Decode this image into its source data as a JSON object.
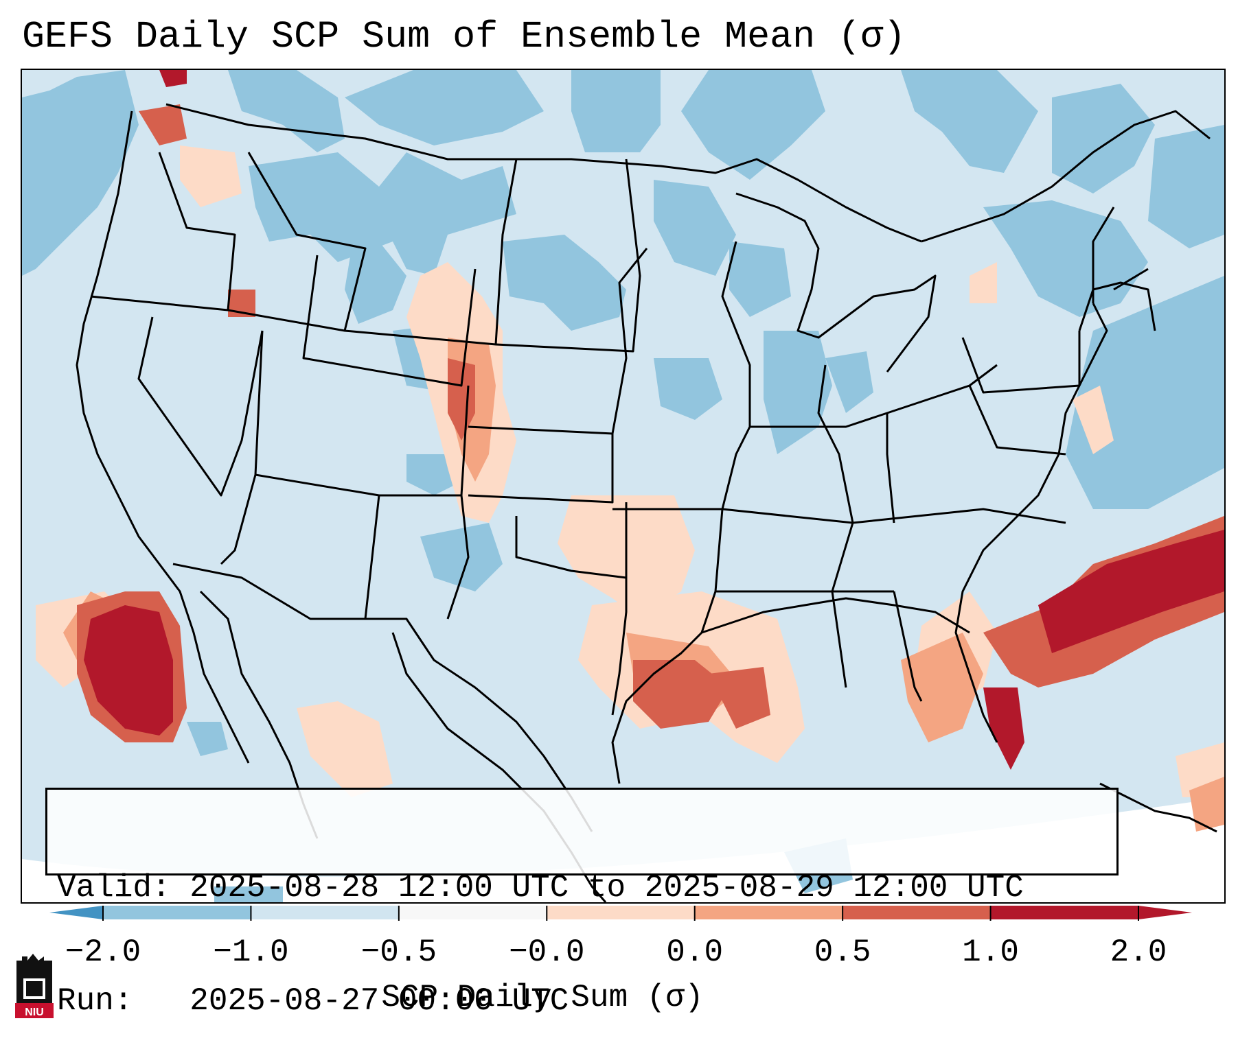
{
  "title": "GEFS Daily SCP Sum of Ensemble Mean (σ)",
  "info": {
    "valid": "Valid: 2025-08-28 12:00 UTC to 2025-08-29 12:00 UTC",
    "run": "Run:   2025-08-27 00:00 UTC"
  },
  "colorbar": {
    "label": "SCP Daily Sum (σ)",
    "ticks": [
      "−2.0",
      "−1.0",
      "−0.5",
      "−0.0",
      "0.0",
      "0.5",
      "1.0",
      "2.0"
    ],
    "colors": [
      "#4393c3",
      "#92c5de",
      "#d1e5f0",
      "#f7f7f7",
      "#fddbc7",
      "#f4a582",
      "#d6604d",
      "#b2182b"
    ],
    "under_color": "#2166ac",
    "over_color": "#67001f"
  },
  "logo": {
    "text": "NIU",
    "color": "#c8102e"
  },
  "field_colors": {
    "neg_strong": "#92c5de",
    "neg_weak": "#d1e5f0",
    "pos_weak": "#fddbc7",
    "pos_mid": "#f4a582",
    "pos_strong": "#d6604d",
    "pos_max": "#b2182b"
  }
}
